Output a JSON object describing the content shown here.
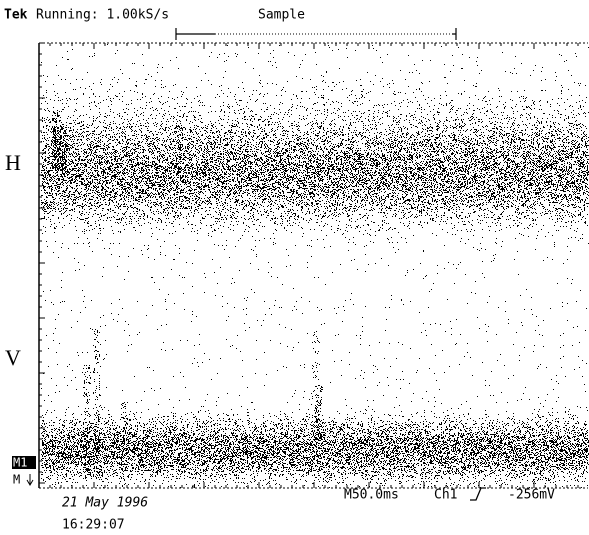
{
  "header": {
    "brand": "Tek",
    "status": "Running: 1.00kS/s",
    "mode": "Sample"
  },
  "traces": {
    "upper": "H",
    "lower": "V"
  },
  "markers": {
    "m1": "M1",
    "m": "M"
  },
  "footer": {
    "date": "21 May 1996",
    "time": "16:29:07",
    "timebase": "M50.0ms",
    "channel": "Ch1",
    "trigger_level": "-256mV"
  }
}
